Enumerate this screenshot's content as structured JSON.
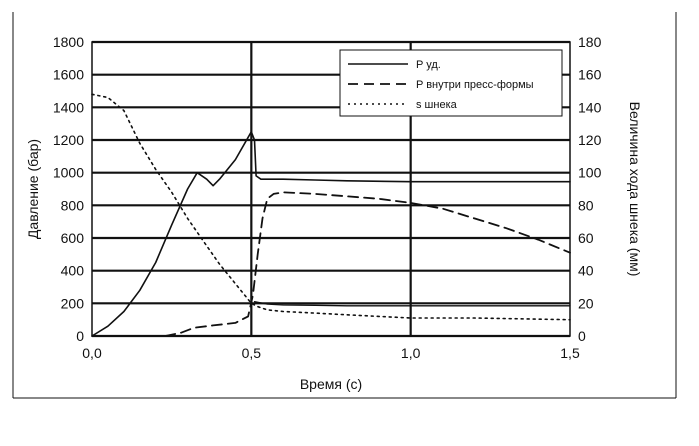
{
  "chart_data": {
    "type": "line",
    "xlabel": "Время (с)",
    "ylabel_left": "Давление (бар)",
    "ylabel_right": "Величина хода шнека (мм)",
    "xlim": [
      0,
      1.5
    ],
    "ylim_left": [
      0,
      1800
    ],
    "ylim_right": [
      0,
      180
    ],
    "x_ticks": [
      0,
      0.5,
      1,
      1.5
    ],
    "x_tick_labels": [
      "0,0",
      "0,5",
      "1,0",
      "1,5"
    ],
    "y_left_ticks": [
      0,
      200,
      400,
      600,
      800,
      1000,
      1200,
      1400,
      1600,
      1800
    ],
    "y_left_tick_labels": [
      "0",
      "200",
      "400",
      "600",
      "800",
      "1000",
      "1200",
      "1400",
      "1600",
      "1800"
    ],
    "y_right_ticks": [
      0,
      20,
      40,
      60,
      80,
      100,
      120,
      140,
      160,
      180
    ],
    "y_right_tick_labels": [
      "0",
      "20",
      "40",
      "60",
      "80",
      "100",
      "120",
      "140",
      "160",
      "180"
    ],
    "grid": "horizontal major lines, vertical at x=0.5 and x=1.0",
    "legend_position": "top-right",
    "series": [
      {
        "name": "P уд.",
        "style": "solid",
        "axis": "left",
        "points": [
          [
            0,
            0
          ],
          [
            0.05,
            60
          ],
          [
            0.1,
            150
          ],
          [
            0.15,
            280
          ],
          [
            0.2,
            450
          ],
          [
            0.25,
            680
          ],
          [
            0.3,
            900
          ],
          [
            0.33,
            1000
          ],
          [
            0.36,
            960
          ],
          [
            0.38,
            920
          ],
          [
            0.4,
            960
          ],
          [
            0.45,
            1080
          ],
          [
            0.5,
            1250
          ],
          [
            0.51,
            1200
          ],
          [
            0.515,
            980
          ],
          [
            0.53,
            960
          ],
          [
            0.6,
            960
          ],
          [
            0.7,
            955
          ],
          [
            0.8,
            950
          ],
          [
            1.0,
            945
          ],
          [
            1.2,
            945
          ],
          [
            1.5,
            945
          ]
        ]
      },
      {
        "name": "P внутри пресс-формы",
        "style": "dashed",
        "axis": "left",
        "points": [
          [
            0.23,
            0
          ],
          [
            0.28,
            20
          ],
          [
            0.32,
            50
          ],
          [
            0.38,
            65
          ],
          [
            0.45,
            80
          ],
          [
            0.49,
            120
          ],
          [
            0.505,
            250
          ],
          [
            0.52,
            500
          ],
          [
            0.535,
            720
          ],
          [
            0.55,
            840
          ],
          [
            0.57,
            870
          ],
          [
            0.6,
            880
          ],
          [
            0.7,
            870
          ],
          [
            0.8,
            855
          ],
          [
            0.9,
            840
          ],
          [
            1.0,
            815
          ],
          [
            1.1,
            780
          ],
          [
            1.2,
            720
          ],
          [
            1.3,
            660
          ],
          [
            1.4,
            590
          ],
          [
            1.5,
            510
          ]
        ]
      },
      {
        "name": "s шнека",
        "style": "dotted",
        "axis": "right",
        "points": [
          [
            0,
            148
          ],
          [
            0.05,
            146
          ],
          [
            0.1,
            138
          ],
          [
            0.15,
            118
          ],
          [
            0.2,
            102
          ],
          [
            0.25,
            88
          ],
          [
            0.3,
            72
          ],
          [
            0.35,
            58
          ],
          [
            0.4,
            44
          ],
          [
            0.45,
            32
          ],
          [
            0.5,
            20
          ],
          [
            0.52,
            18
          ],
          [
            0.55,
            16
          ],
          [
            0.6,
            15
          ],
          [
            0.7,
            14
          ],
          [
            0.8,
            13
          ],
          [
            0.9,
            12
          ],
          [
            1.0,
            11
          ],
          [
            1.2,
            11
          ],
          [
            1.5,
            10
          ]
        ]
      },
      {
        "name": "",
        "style": "solid-thin",
        "axis": "left",
        "points": [
          [
            0.51,
            210
          ],
          [
            0.55,
            195
          ],
          [
            0.6,
            190
          ],
          [
            0.7,
            188
          ],
          [
            0.8,
            185
          ],
          [
            1.0,
            185
          ],
          [
            1.2,
            185
          ],
          [
            1.5,
            185
          ]
        ]
      }
    ],
    "colors": {
      "line": "#111111",
      "grid": "#111111",
      "background": "#ffffff"
    }
  }
}
